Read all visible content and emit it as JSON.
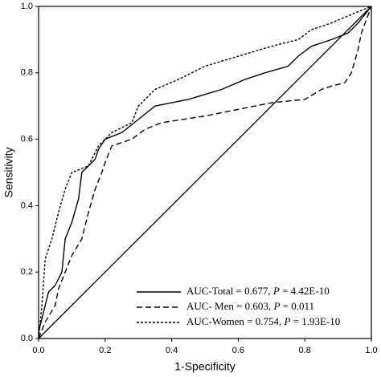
{
  "chart_data": {
    "type": "line",
    "x_label": "1-Specificity",
    "y_label": "Sensitivity",
    "xlim": [
      0,
      1
    ],
    "ylim": [
      0,
      1
    ],
    "xticks": [
      {
        "value": 0,
        "label": "0.0"
      },
      0.2,
      0.4,
      0.6,
      0.8,
      {
        "value": 1,
        "label": "1.0"
      }
    ],
    "yticks": [
      {
        "value": 0,
        "label": "0.0"
      },
      0.2,
      0.4,
      0.6,
      0.8,
      {
        "value": 1,
        "label": "1.0"
      }
    ],
    "legend": "lower right",
    "series": [
      {
        "name": "AUC-Total = 0.677, P = 4.42E-10",
        "color": "#000000",
        "dash": "solid",
        "x": [
          0,
          0,
          0.01,
          0.02,
          0.03,
          0.05,
          0.07,
          0.08,
          0.1,
          0.12,
          0.13,
          0.15,
          0.17,
          0.18,
          0.2,
          0.25,
          0.3,
          0.35,
          0.45,
          0.55,
          0.62,
          0.68,
          0.75,
          0.78,
          0.82,
          0.88,
          0.93,
          0.96,
          1
        ],
        "values": [
          0,
          0.02,
          0.06,
          0.1,
          0.14,
          0.16,
          0.2,
          0.3,
          0.35,
          0.42,
          0.5,
          0.52,
          0.54,
          0.57,
          0.6,
          0.62,
          0.66,
          0.7,
          0.72,
          0.75,
          0.78,
          0.8,
          0.82,
          0.85,
          0.88,
          0.9,
          0.92,
          0.95,
          1
        ]
      },
      {
        "name": "AUC- Men = 0.603, P = 0.011",
        "color": "#000000",
        "dash": "dashed",
        "x": [
          0,
          0.02,
          0.05,
          0.06,
          0.08,
          0.1,
          0.13,
          0.15,
          0.17,
          0.19,
          0.2,
          0.22,
          0.28,
          0.32,
          0.37,
          0.5,
          0.6,
          0.7,
          0.8,
          0.85,
          0.88,
          0.92,
          0.94,
          0.96,
          0.97,
          1
        ],
        "values": [
          0,
          0.05,
          0.1,
          0.15,
          0.2,
          0.25,
          0.3,
          0.38,
          0.45,
          0.5,
          0.53,
          0.58,
          0.6,
          0.63,
          0.65,
          0.67,
          0.69,
          0.71,
          0.72,
          0.75,
          0.76,
          0.77,
          0.8,
          0.87,
          0.92,
          1
        ]
      },
      {
        "name": "AUC-Women = 0.754, P = 1.93E-10",
        "color": "#000000",
        "dash": "dotted",
        "x": [
          0,
          0.01,
          0.02,
          0.04,
          0.06,
          0.08,
          0.1,
          0.15,
          0.18,
          0.22,
          0.28,
          0.3,
          0.35,
          0.42,
          0.5,
          0.6,
          0.7,
          0.78,
          0.82,
          0.88,
          0.95,
          1
        ],
        "values": [
          0,
          0.1,
          0.24,
          0.3,
          0.38,
          0.45,
          0.5,
          0.52,
          0.58,
          0.62,
          0.65,
          0.7,
          0.75,
          0.78,
          0.82,
          0.85,
          0.88,
          0.9,
          0.93,
          0.95,
          0.98,
          1
        ]
      }
    ]
  }
}
